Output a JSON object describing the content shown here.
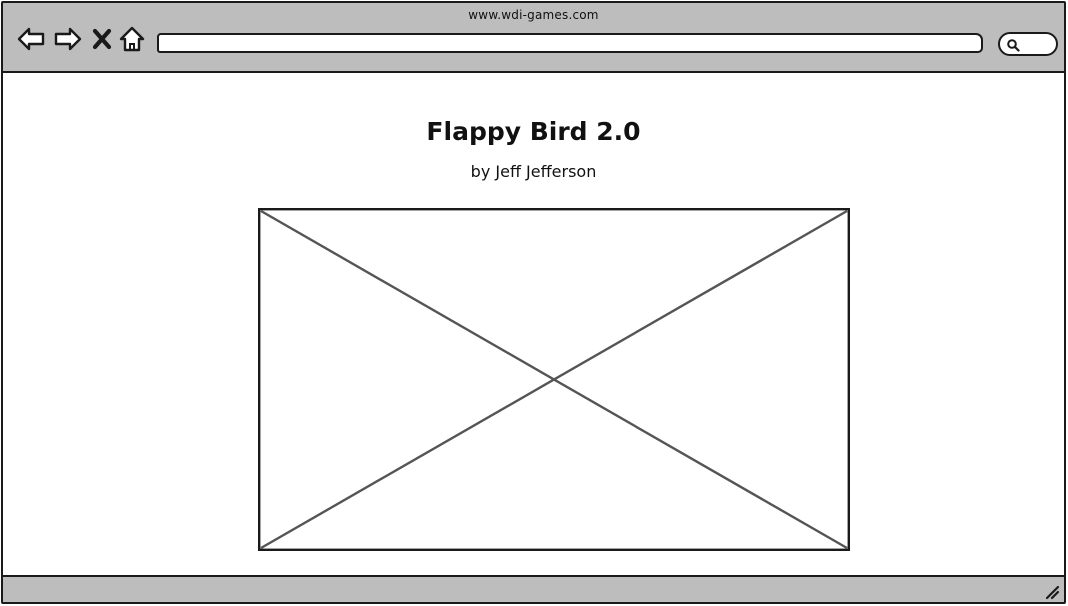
{
  "browser": {
    "url": "www.wdi-games.com",
    "address_value": "",
    "icons": {
      "back": "back-arrow-icon",
      "forward": "forward-arrow-icon",
      "stop": "close-icon",
      "home": "home-icon",
      "search": "search-icon",
      "resize": "resize-grip-icon"
    }
  },
  "page": {
    "title": "Flappy Bird 2.0",
    "author": "by Jeff Jefferson",
    "image": "image-placeholder"
  },
  "colors": {
    "chrome": "#bdbdbd",
    "stroke": "#1a1a1a",
    "background": "#ffffff",
    "placeholder_cross": "#555555"
  }
}
